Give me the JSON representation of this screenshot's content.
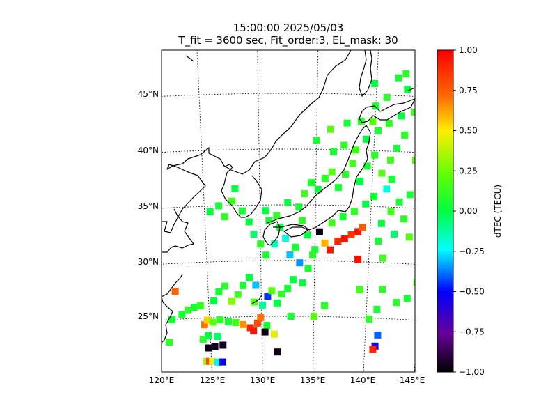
{
  "chart_data": {
    "type": "heatmap",
    "title": "15:00:00 2025/05/03",
    "subtitle": "T_fit = 3600 sec, Fit_order:3, EL_mask: 30",
    "map": {
      "lon_range": [
        120,
        145
      ],
      "lat_range": [
        20,
        49
      ],
      "lon_ticks": [
        "120°E",
        "125°E",
        "130°E",
        "135°E",
        "140°E",
        "145°E"
      ],
      "lat_ticks": [
        "25°N",
        "30°N",
        "35°N",
        "40°N",
        "45°N"
      ],
      "gridlines": "dotted",
      "coastlines": true
    },
    "colorbar": {
      "label": "dTEC (TECU)",
      "range": [
        -1.0,
        1.0
      ],
      "ticks": [
        "1.00",
        "0.75",
        "0.50",
        "0.25",
        "0.00",
        "−0.25",
        "−0.50",
        "−0.75",
        "−1.00"
      ],
      "colormap": "jet-like: black → purple → blue → cyan → green → yellow → orange → red"
    },
    "points": [
      {
        "lon": 124.5,
        "lat": 21.1,
        "value": 0.35
      },
      {
        "lon": 124.8,
        "lat": 21.1,
        "value": 0.8
      },
      {
        "lon": 125.1,
        "lat": 21.1,
        "value": 0.5
      },
      {
        "lon": 125.6,
        "lat": 21.0,
        "value": -0.25
      },
      {
        "lon": 126.1,
        "lat": 21.0,
        "value": -0.5
      },
      {
        "lon": 124.8,
        "lat": 22.3,
        "value": -0.97
      },
      {
        "lon": 125.4,
        "lat": 22.4,
        "value": -0.95
      },
      {
        "lon": 126.2,
        "lat": 22.5,
        "value": -0.95
      },
      {
        "lon": 124.3,
        "lat": 23.1,
        "value": 0.1
      },
      {
        "lon": 124.8,
        "lat": 23.4,
        "value": 0.0
      },
      {
        "lon": 125.7,
        "lat": 23.3,
        "value": -0.05
      },
      {
        "lon": 124.5,
        "lat": 24.4,
        "value": 0.7
      },
      {
        "lon": 124.8,
        "lat": 24.8,
        "value": 0.55
      },
      {
        "lon": 125.3,
        "lat": 24.6,
        "value": 0.2
      },
      {
        "lon": 126.0,
        "lat": 24.8,
        "value": 0.1
      },
      {
        "lon": 126.8,
        "lat": 24.6,
        "value": 0.05
      },
      {
        "lon": 127.5,
        "lat": 24.5,
        "value": 0.15
      },
      {
        "lon": 128.2,
        "lat": 24.3,
        "value": 0.65
      },
      {
        "lon": 128.9,
        "lat": 24.0,
        "value": 0.9
      },
      {
        "lon": 129.2,
        "lat": 23.7,
        "value": 0.95
      },
      {
        "lon": 129.6,
        "lat": 24.4,
        "value": 0.8
      },
      {
        "lon": 129.9,
        "lat": 24.9,
        "value": 0.7
      },
      {
        "lon": 130.5,
        "lat": 24.2,
        "value": 0.05
      },
      {
        "lon": 130.3,
        "lat": 23.6,
        "value": -0.97
      },
      {
        "lon": 131.2,
        "lat": 23.4,
        "value": 0.45
      },
      {
        "lon": 131.5,
        "lat": 21.8,
        "value": -0.97
      },
      {
        "lon": 121.0,
        "lat": 23.0,
        "value": 0.1
      },
      {
        "lon": 121.4,
        "lat": 25.0,
        "value": 0.05
      },
      {
        "lon": 121.9,
        "lat": 27.5,
        "value": 0.72
      },
      {
        "lon": 122.4,
        "lat": 25.4,
        "value": 0.05
      },
      {
        "lon": 123.0,
        "lat": 25.8,
        "value": 0.1
      },
      {
        "lon": 123.6,
        "lat": 26.0,
        "value": 0.05
      },
      {
        "lon": 124.2,
        "lat": 26.1,
        "value": 0.12
      },
      {
        "lon": 125.5,
        "lat": 26.5,
        "value": 0.0
      },
      {
        "lon": 126.0,
        "lat": 27.3,
        "value": 0.05
      },
      {
        "lon": 126.6,
        "lat": 27.8,
        "value": 0.1
      },
      {
        "lon": 127.2,
        "lat": 26.4,
        "value": 0.3
      },
      {
        "lon": 127.8,
        "lat": 27.0,
        "value": 0.15
      },
      {
        "lon": 128.3,
        "lat": 27.8,
        "value": 0.05
      },
      {
        "lon": 128.9,
        "lat": 28.5,
        "value": 0.0
      },
      {
        "lon": 129.3,
        "lat": 26.3,
        "value": 0.2
      },
      {
        "lon": 129.5,
        "lat": 27.8,
        "value": -0.3
      },
      {
        "lon": 130.1,
        "lat": 26.0,
        "value": -0.1
      },
      {
        "lon": 130.6,
        "lat": 26.8,
        "value": -0.45
      },
      {
        "lon": 131.0,
        "lat": 27.3,
        "value": 0.2
      },
      {
        "lon": 131.5,
        "lat": 26.2,
        "value": 0.0
      },
      {
        "lon": 131.9,
        "lat": 27.0,
        "value": 0.1
      },
      {
        "lon": 132.5,
        "lat": 27.5,
        "value": 0.05
      },
      {
        "lon": 133.0,
        "lat": 28.3,
        "value": 0.0
      },
      {
        "lon": 132.8,
        "lat": 25.0,
        "value": 0.05
      },
      {
        "lon": 133.9,
        "lat": 28.0,
        "value": 0.0
      },
      {
        "lon": 135.0,
        "lat": 25.0,
        "value": 0.2
      },
      {
        "lon": 136.0,
        "lat": 26.0,
        "value": 0.1
      },
      {
        "lon": 125.5,
        "lat": 34.5,
        "value": 0.0
      },
      {
        "lon": 126.3,
        "lat": 35.0,
        "value": 0.05
      },
      {
        "lon": 126.8,
        "lat": 34.0,
        "value": 0.1
      },
      {
        "lon": 127.5,
        "lat": 35.4,
        "value": 0.15
      },
      {
        "lon": 127.8,
        "lat": 36.5,
        "value": 0.0
      },
      {
        "lon": 128.4,
        "lat": 34.5,
        "value": 0.05
      },
      {
        "lon": 129.0,
        "lat": 33.5,
        "value": 0.0
      },
      {
        "lon": 129.4,
        "lat": 32.4,
        "value": -0.05
      },
      {
        "lon": 130.0,
        "lat": 31.5,
        "value": 0.1
      },
      {
        "lon": 130.5,
        "lat": 30.5,
        "value": 0.05
      },
      {
        "lon": 131.3,
        "lat": 31.5,
        "value": -0.15
      },
      {
        "lon": 131.8,
        "lat": 33.0,
        "value": 0.0
      },
      {
        "lon": 132.3,
        "lat": 32.0,
        "value": -0.2
      },
      {
        "lon": 132.7,
        "lat": 30.5,
        "value": -0.3
      },
      {
        "lon": 133.2,
        "lat": 31.2,
        "value": 0.05
      },
      {
        "lon": 133.8,
        "lat": 33.6,
        "value": 0.1
      },
      {
        "lon": 134.3,
        "lat": 32.3,
        "value": 0.0
      },
      {
        "lon": 134.8,
        "lat": 30.5,
        "value": 0.1
      },
      {
        "lon": 135.0,
        "lat": 31.0,
        "value": 0.05
      },
      {
        "lon": 135.4,
        "lat": 32.6,
        "value": -0.97
      },
      {
        "lon": 135.9,
        "lat": 31.6,
        "value": 0.6
      },
      {
        "lon": 136.4,
        "lat": 31.0,
        "value": 0.95
      },
      {
        "lon": 137.1,
        "lat": 31.8,
        "value": 0.9
      },
      {
        "lon": 137.7,
        "lat": 32.0,
        "value": 0.95
      },
      {
        "lon": 138.3,
        "lat": 32.4,
        "value": 0.85
      },
      {
        "lon": 138.9,
        "lat": 32.7,
        "value": 0.95
      },
      {
        "lon": 139.3,
        "lat": 33.1,
        "value": 0.75
      },
      {
        "lon": 139.0,
        "lat": 30.2,
        "value": 0.97
      },
      {
        "lon": 136.5,
        "lat": 33.4,
        "value": 0.15
      },
      {
        "lon": 137.5,
        "lat": 34.0,
        "value": 0.05
      },
      {
        "lon": 138.5,
        "lat": 34.5,
        "value": 0.1
      },
      {
        "lon": 139.5,
        "lat": 35.2,
        "value": 0.0
      },
      {
        "lon": 140.2,
        "lat": 35.9,
        "value": 0.05
      },
      {
        "lon": 141.0,
        "lat": 33.5,
        "value": 0.0
      },
      {
        "lon": 141.8,
        "lat": 34.6,
        "value": 0.15
      },
      {
        "lon": 142.5,
        "lat": 35.5,
        "value": 0.05
      },
      {
        "lon": 143.0,
        "lat": 34.0,
        "value": 0.1
      },
      {
        "lon": 143.6,
        "lat": 32.4,
        "value": 0.2
      },
      {
        "lon": 143.4,
        "lat": 36.2,
        "value": 0.05
      },
      {
        "lon": 144.4,
        "lat": 36.5,
        "value": 0.1
      },
      {
        "lon": 144.8,
        "lat": 37.6,
        "value": 0.0
      },
      {
        "lon": 143.7,
        "lat": 39.3,
        "value": 0.2
      },
      {
        "lon": 134.0,
        "lat": 36.0,
        "value": 0.15
      },
      {
        "lon": 134.6,
        "lat": 37.0,
        "value": 0.05
      },
      {
        "lon": 135.2,
        "lat": 36.4,
        "value": 0.0
      },
      {
        "lon": 135.8,
        "lat": 37.4,
        "value": 0.1
      },
      {
        "lon": 136.4,
        "lat": 38.0,
        "value": 0.2
      },
      {
        "lon": 137.0,
        "lat": 36.6,
        "value": 0.05
      },
      {
        "lon": 137.6,
        "lat": 37.8,
        "value": 0.1
      },
      {
        "lon": 138.2,
        "lat": 38.8,
        "value": 0.15
      },
      {
        "lon": 138.9,
        "lat": 37.2,
        "value": 0.0
      },
      {
        "lon": 139.5,
        "lat": 38.6,
        "value": 0.05
      },
      {
        "lon": 140.1,
        "lat": 39.6,
        "value": 0.1
      },
      {
        "lon": 140.8,
        "lat": 38.0,
        "value": 0.2
      },
      {
        "lon": 141.5,
        "lat": 39.2,
        "value": 0.15
      },
      {
        "lon": 142.0,
        "lat": 40.3,
        "value": 0.05
      },
      {
        "lon": 142.6,
        "lat": 41.5,
        "value": 0.1
      },
      {
        "lon": 141.3,
        "lat": 36.6,
        "value": -0.2
      },
      {
        "lon": 141.7,
        "lat": 37.5,
        "value": 0.05
      },
      {
        "lon": 136.5,
        "lat": 39.8,
        "value": 0.05
      },
      {
        "lon": 137.4,
        "lat": 40.4,
        "value": 0.1
      },
      {
        "lon": 138.4,
        "lat": 40.0,
        "value": 0.15
      },
      {
        "lon": 139.3,
        "lat": 41.0,
        "value": 0.0
      },
      {
        "lon": 140.3,
        "lat": 41.8,
        "value": 0.05
      },
      {
        "lon": 141.2,
        "lat": 42.5,
        "value": 0.1
      },
      {
        "lon": 142.2,
        "lat": 43.2,
        "value": 0.0
      },
      {
        "lon": 143.3,
        "lat": 43.6,
        "value": 0.15
      },
      {
        "lon": 144.1,
        "lat": 44.4,
        "value": 0.05
      },
      {
        "lon": 144.7,
        "lat": 43.3,
        "value": 0.1
      },
      {
        "lon": 145.2,
        "lat": 45.3,
        "value": 0.05
      },
      {
        "lon": 143.6,
        "lat": 45.8,
        "value": 0.2
      },
      {
        "lon": 142.6,
        "lat": 45.6,
        "value": 0.0
      },
      {
        "lon": 141.8,
        "lat": 46.6,
        "value": 0.05
      },
      {
        "lon": 142.4,
        "lat": 47.0,
        "value": 0.1
      },
      {
        "lon": 143.4,
        "lat": 47.2,
        "value": 0.15
      },
      {
        "lon": 144.4,
        "lat": 46.6,
        "value": 0.05
      },
      {
        "lon": 140.0,
        "lat": 44.0,
        "value": 0.05
      },
      {
        "lon": 140.9,
        "lat": 44.8,
        "value": 0.1
      },
      {
        "lon": 139.8,
        "lat": 46.0,
        "value": 0.0
      },
      {
        "lon": 139.8,
        "lat": 42.6,
        "value": 0.2
      },
      {
        "lon": 138.8,
        "lat": 42.6,
        "value": 0.1
      },
      {
        "lon": 137.6,
        "lat": 42.4,
        "value": 0.05
      },
      {
        "lon": 136.2,
        "lat": 41.8,
        "value": 0.2
      },
      {
        "lon": 135.0,
        "lat": 40.8,
        "value": 0.05
      },
      {
        "lon": 133.5,
        "lat": 34.8,
        "value": 0.05
      },
      {
        "lon": 132.5,
        "lat": 35.2,
        "value": 0.0
      },
      {
        "lon": 131.5,
        "lat": 34.0,
        "value": 0.1
      },
      {
        "lon": 130.5,
        "lat": 34.5,
        "value": 0.0
      },
      {
        "lon": 130.8,
        "lat": 33.6,
        "value": 0.05
      },
      {
        "lon": 133.6,
        "lat": 29.8,
        "value": -0.35
      },
      {
        "lon": 134.4,
        "lat": 29.3,
        "value": 0.05
      },
      {
        "lon": 141.3,
        "lat": 30.4,
        "value": 0.15
      },
      {
        "lon": 140.8,
        "lat": 31.9,
        "value": 0.05
      },
      {
        "lon": 142.2,
        "lat": 32.6,
        "value": -0.05
      },
      {
        "lon": 141.4,
        "lat": 27.6,
        "value": 0.1
      },
      {
        "lon": 141.0,
        "lat": 25.8,
        "value": 0.05
      },
      {
        "lon": 139.3,
        "lat": 27.5,
        "value": 0.15
      },
      {
        "lon": 142.8,
        "lat": 26.5,
        "value": 0.1
      },
      {
        "lon": 143.8,
        "lat": 26.9,
        "value": 0.05
      },
      {
        "lon": 144.6,
        "lat": 28.4,
        "value": 0.15
      },
      {
        "lon": 145.2,
        "lat": 27.5,
        "value": 0.0
      },
      {
        "lon": 140.3,
        "lat": 24.9,
        "value": 0.1
      },
      {
        "lon": 141.2,
        "lat": 23.5,
        "value": -0.4
      },
      {
        "lon": 141.0,
        "lat": 22.5,
        "value": -0.55
      },
      {
        "lon": 140.8,
        "lat": 22.2,
        "value": 0.9
      }
    ]
  }
}
